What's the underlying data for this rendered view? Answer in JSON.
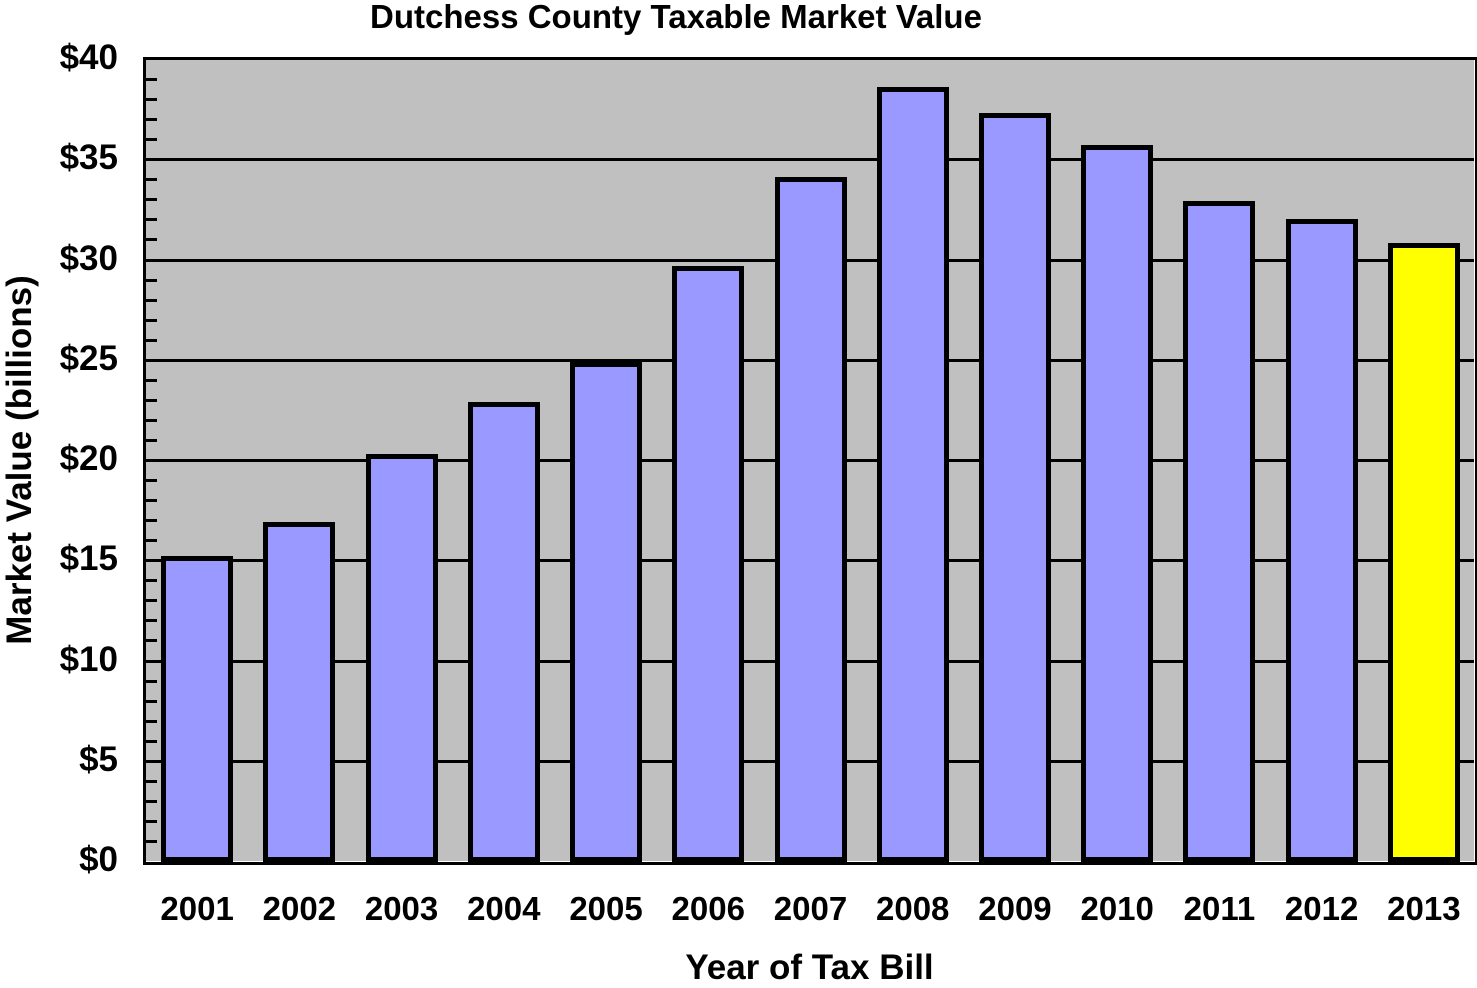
{
  "chart_data": {
    "type": "bar",
    "title": "Dutchess County Taxable Market Value",
    "xlabel": "Year of Tax Bill",
    "ylabel": "Market Value (billions)",
    "categories": [
      "2001",
      "2002",
      "2003",
      "2004",
      "2005",
      "2006",
      "2007",
      "2008",
      "2009",
      "2010",
      "2011",
      "2012",
      "2013"
    ],
    "values": [
      15.1,
      16.8,
      20.2,
      22.8,
      24.8,
      29.6,
      34.0,
      38.5,
      37.2,
      35.6,
      32.8,
      31.9,
      30.7
    ],
    "unit": "billions USD",
    "ylim": [
      0,
      40
    ],
    "yticks": [
      0,
      5,
      10,
      15,
      20,
      25,
      30,
      35,
      40
    ],
    "ytick_labels": [
      "$0",
      "$5",
      "$10",
      "$15",
      "$20",
      "$25",
      "$30",
      "$35",
      "$40"
    ],
    "minor_tick_step": 1,
    "grid": true,
    "legend": null,
    "highlighted_category": "2013"
  },
  "colors": {
    "plot_background": "#c0c0c0",
    "bar_default": "#9999ff",
    "bar_highlight": "#ffff00",
    "outline": "#000000"
  }
}
